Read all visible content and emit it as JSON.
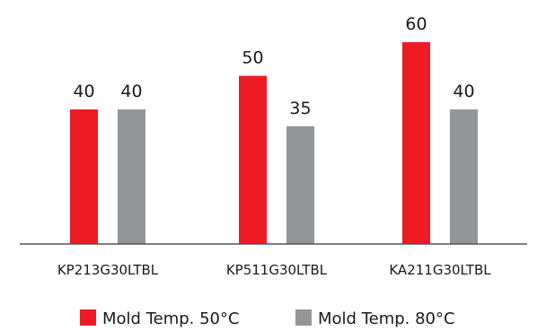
{
  "chart_data": {
    "type": "bar",
    "title": "",
    "xlabel": "",
    "ylabel": "",
    "ylim": [
      0,
      60
    ],
    "grid": false,
    "legend_position": "bottom",
    "categories": [
      "KP213G30LTBL",
      "KP511G30LTBL",
      "KA211G30LTBL"
    ],
    "series": [
      {
        "name": "Mold Temp. 50°C",
        "color": "#ed1c24",
        "values": [
          40,
          50,
          60
        ]
      },
      {
        "name": "Mold Temp. 80°C",
        "color": "#939598",
        "values": [
          40,
          35,
          40
        ]
      }
    ]
  }
}
